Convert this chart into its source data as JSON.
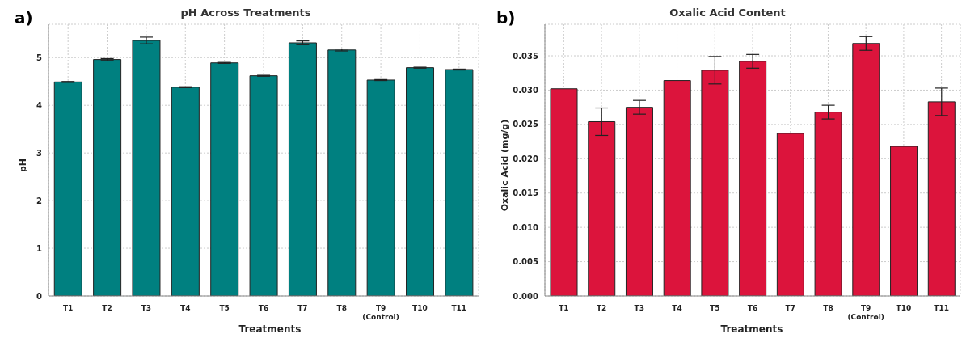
{
  "chart_data": [
    {
      "type": "bar",
      "title": "pH Across Treatments",
      "xlabel": "Treatments",
      "ylabel": "pH",
      "annotations": [
        "a)"
      ],
      "categories": [
        "T1",
        "T2",
        "T3",
        "T4",
        "T5",
        "T6",
        "T7",
        "T8",
        "T9\n(Control)",
        "T10",
        "T11"
      ],
      "series": [
        {
          "color": "#008080",
          "values": [
            4.49,
            4.96,
            5.36,
            4.38,
            4.89,
            4.62,
            5.31,
            5.16,
            4.53,
            4.79,
            4.75
          ],
          "errors": [
            0.01,
            0.02,
            0.07,
            0.01,
            0.01,
            0.01,
            0.04,
            0.02,
            0.01,
            0.01,
            0.01
          ]
        }
      ],
      "ylim": [
        0,
        5.7
      ],
      "yticks": [
        0,
        1,
        2,
        3,
        4,
        5
      ],
      "grid": true,
      "legend": false
    },
    {
      "type": "bar",
      "title": "Oxalic Acid Content",
      "xlabel": "Treatments",
      "ylabel": "Oxalic Acid (mg/g)",
      "annotations": [
        "b)"
      ],
      "categories": [
        "T1",
        "T2",
        "T3",
        "T4",
        "T5",
        "T6",
        "T7",
        "T8",
        "T9\n(Control)",
        "T10",
        "T11"
      ],
      "series": [
        {
          "color": "#dc143c",
          "values": [
            0.0302,
            0.0254,
            0.0275,
            0.0314,
            0.0329,
            0.0342,
            0.0237,
            0.0268,
            0.0368,
            0.0218,
            0.0283
          ],
          "errors": [
            null,
            0.002,
            0.001,
            null,
            0.002,
            0.001,
            null,
            0.001,
            0.001,
            null,
            0.002
          ]
        }
      ],
      "ylim": [
        0,
        0.0396
      ],
      "yticks": [
        {
          "value": 0,
          "label": "0.000"
        },
        {
          "value": 0.005,
          "label": "0.005"
        },
        {
          "value": 0.01,
          "label": "0.010"
        },
        {
          "value": 0.015,
          "label": "0.015"
        },
        {
          "value": 0.02,
          "label": "0.020"
        },
        {
          "value": 0.025,
          "label": "0.025"
        },
        {
          "value": 0.03,
          "label": "0.030"
        },
        {
          "value": 0.035,
          "label": "0.035"
        }
      ],
      "grid": true,
      "legend": false
    }
  ]
}
